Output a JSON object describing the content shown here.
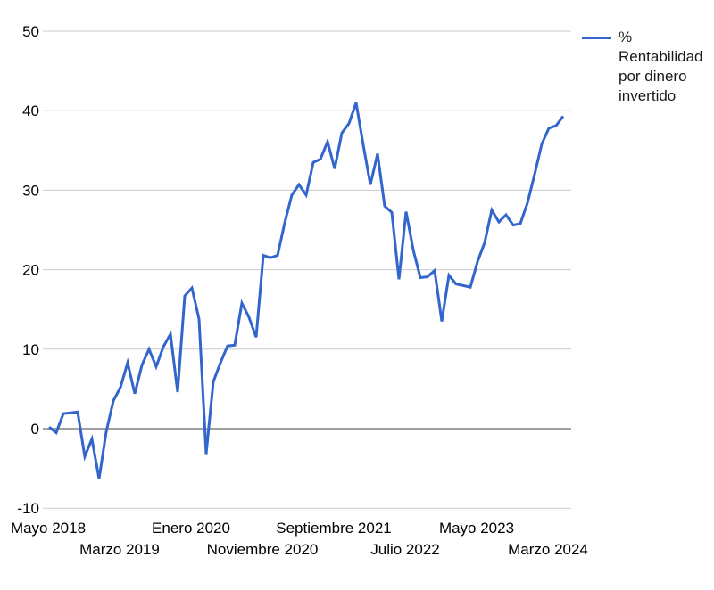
{
  "legend": {
    "label": "% Rentabilidad por dinero invertido"
  },
  "chart_data": {
    "type": "line",
    "title": "",
    "colors": {
      "series": "#3366cc",
      "gridline": "#cccccc",
      "baseline": "#808080",
      "axis_text": "#000000"
    },
    "y_axis": {
      "ticks": [
        50,
        40,
        30,
        20,
        10,
        0,
        -10
      ],
      "ylim": [
        -10,
        50
      ],
      "grid": true
    },
    "x_axis": {
      "ticks": [
        {
          "label": "Mayo 2018",
          "row": 1
        },
        {
          "label": "Marzo 2019",
          "row": 2
        },
        {
          "label": "Enero 2020",
          "row": 1
        },
        {
          "label": "Noviembre 2020",
          "row": 2
        },
        {
          "label": "Septiembre 2021",
          "row": 1
        },
        {
          "label": "Julio 2022",
          "row": 2
        },
        {
          "label": "Mayo 2023",
          "row": 1
        },
        {
          "label": "Marzo 2024",
          "row": 2
        }
      ]
    },
    "x_months": [
      "2018-05",
      "2018-06",
      "2018-07",
      "2018-08",
      "2018-09",
      "2018-10",
      "2018-11",
      "2018-12",
      "2019-01",
      "2019-02",
      "2019-03",
      "2019-04",
      "2019-05",
      "2019-06",
      "2019-07",
      "2019-08",
      "2019-09",
      "2019-10",
      "2019-11",
      "2019-12",
      "2020-01",
      "2020-02",
      "2020-03",
      "2020-04",
      "2020-05",
      "2020-06",
      "2020-07",
      "2020-08",
      "2020-09",
      "2020-10",
      "2020-11",
      "2020-12",
      "2021-01",
      "2021-02",
      "2021-03",
      "2021-04",
      "2021-05",
      "2021-06",
      "2021-07",
      "2021-08",
      "2021-09",
      "2021-10",
      "2021-11",
      "2021-12",
      "2022-01",
      "2022-02",
      "2022-03",
      "2022-04",
      "2022-05",
      "2022-06",
      "2022-07",
      "2022-08",
      "2022-09",
      "2022-10",
      "2022-11",
      "2022-12",
      "2023-01",
      "2023-02",
      "2023-03",
      "2023-04",
      "2023-05",
      "2023-06",
      "2023-07",
      "2023-08",
      "2023-09",
      "2023-10",
      "2023-11",
      "2023-12",
      "2024-01",
      "2024-02",
      "2024-03",
      "2024-04",
      "2024-05"
    ],
    "series": [
      {
        "name": "% Rentabilidad por dinero invertido",
        "color": "#3366cc",
        "values": [
          0.2,
          -0.5,
          1.9,
          2.0,
          2.1,
          -3.5,
          -1.3,
          -6.3,
          -0.4,
          3.5,
          5.2,
          8.3,
          4.4,
          8.0,
          10.0,
          7.8,
          10.3,
          11.9,
          4.6,
          16.7,
          17.7,
          13.8,
          -3.2,
          5.9,
          8.3,
          10.4,
          10.5,
          15.8,
          14.0,
          11.5,
          21.8,
          21.5,
          21.8,
          25.9,
          29.4,
          30.7,
          29.4,
          33.5,
          33.9,
          36.1,
          32.7,
          37.2,
          38.4,
          41.0,
          35.7,
          30.7,
          34.6,
          28.0,
          27.2,
          18.8,
          27.3,
          22.5,
          19.0,
          19.1,
          19.9,
          13.5,
          19.3,
          18.2,
          18.0,
          17.8,
          21.0,
          23.4,
          27.5,
          26.0,
          26.9,
          25.6,
          25.8,
          28.4,
          32.0,
          35.8,
          37.8,
          38.1,
          39.3
        ]
      }
    ]
  }
}
